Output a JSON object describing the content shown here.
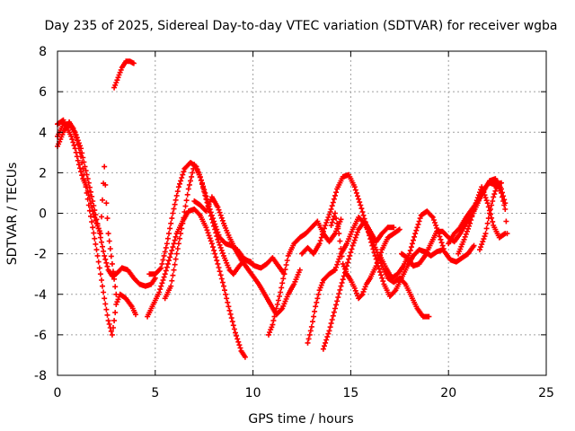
{
  "chart_data": {
    "type": "scatter",
    "title": "Day 235 of 2025, Sidereal Day-to-day VTEC variation (SDTVAR) for receiver wgba",
    "xlabel": "GPS time / hours",
    "ylabel": "SDTVAR / TECUs",
    "xlim": [
      0,
      25
    ],
    "ylim": [
      -8,
      8
    ],
    "x_ticks": [
      0,
      5,
      10,
      15,
      20,
      25
    ],
    "y_ticks": [
      -8,
      -6,
      -4,
      -2,
      0,
      2,
      4,
      6,
      8
    ],
    "grid": true,
    "legend": "none",
    "marker": "+",
    "series_color": "#ff0000",
    "series": [
      {
        "name": "trace-1",
        "points": [
          [
            0,
            3.3
          ],
          [
            0.3,
            4.0
          ],
          [
            0.6,
            4.5
          ],
          [
            0.8,
            4.2
          ],
          [
            1.0,
            3.6
          ],
          [
            1.2,
            2.8
          ],
          [
            1.4,
            1.6
          ],
          [
            1.6,
            0.4
          ],
          [
            1.8,
            -0.7
          ],
          [
            2.0,
            -1.8
          ],
          [
            2.2,
            -3.0
          ],
          [
            2.4,
            -4.2
          ],
          [
            2.6,
            -5.3
          ],
          [
            2.8,
            -6.0
          ],
          [
            2.9,
            -5.3
          ],
          [
            3.0,
            -4.5
          ],
          [
            3.2,
            -4.0
          ],
          [
            3.5,
            -4.2
          ],
          [
            3.8,
            -4.6
          ],
          [
            4.0,
            -5.0
          ]
        ]
      },
      {
        "name": "trace-2",
        "points": [
          [
            0,
            3.8
          ],
          [
            0.3,
            4.4
          ],
          [
            0.6,
            4.4
          ],
          [
            0.9,
            4.0
          ],
          [
            1.2,
            3.2
          ],
          [
            1.4,
            2.3
          ],
          [
            1.6,
            1.5
          ],
          [
            1.8,
            0.6
          ],
          [
            2.0,
            -0.3
          ],
          [
            2.2,
            -1.2
          ],
          [
            2.4,
            -2.1
          ],
          [
            2.6,
            -2.8
          ],
          [
            2.8,
            -3.1
          ],
          [
            3.0,
            -3.0
          ],
          [
            3.3,
            -2.7
          ],
          [
            3.6,
            -2.8
          ],
          [
            3.9,
            -3.2
          ],
          [
            4.2,
            -3.5
          ],
          [
            4.5,
            -3.6
          ],
          [
            4.8,
            -3.5
          ],
          [
            5.0,
            -3.2
          ]
        ]
      },
      {
        "name": "trace-3",
        "points": [
          [
            0,
            4.4
          ],
          [
            0.3,
            4.6
          ],
          [
            0.5,
            4.2
          ],
          [
            0.7,
            3.8
          ],
          [
            0.9,
            3.2
          ],
          [
            1.1,
            2.4
          ],
          [
            1.3,
            1.7
          ],
          [
            1.5,
            1.3
          ],
          [
            1.6,
            0.9
          ],
          [
            1.8,
            0.1
          ],
          [
            2.0,
            -0.5
          ],
          [
            2.2,
            -1.0
          ],
          [
            2.4,
            2.3
          ],
          [
            2.5,
            0.5
          ],
          [
            2.6,
            -1.0
          ],
          [
            2.8,
            -2.5
          ],
          [
            3.0,
            -4.0
          ]
        ]
      },
      {
        "name": "trace-4",
        "points": [
          [
            2.9,
            6.2
          ],
          [
            3.1,
            6.7
          ],
          [
            3.3,
            7.2
          ],
          [
            3.5,
            7.5
          ],
          [
            3.7,
            7.5
          ],
          [
            3.9,
            7.4
          ]
        ]
      },
      {
        "name": "trace-5",
        "points": [
          [
            4.6,
            -5.1
          ],
          [
            4.9,
            -4.5
          ],
          [
            5.2,
            -3.9
          ],
          [
            5.5,
            -3.0
          ],
          [
            5.8,
            -2.0
          ],
          [
            6.1,
            -1.0
          ],
          [
            6.4,
            -0.4
          ],
          [
            6.7,
            0.1
          ],
          [
            7.0,
            0.2
          ],
          [
            7.3,
            -0.1
          ],
          [
            7.6,
            -0.7
          ],
          [
            7.9,
            -1.5
          ],
          [
            8.2,
            -2.5
          ],
          [
            8.5,
            -3.6
          ],
          [
            8.8,
            -4.8
          ],
          [
            9.1,
            -5.9
          ],
          [
            9.4,
            -6.8
          ],
          [
            9.6,
            -7.1
          ]
        ]
      },
      {
        "name": "trace-6",
        "points": [
          [
            4.7,
            -3.0
          ],
          [
            5.0,
            -3.0
          ],
          [
            5.3,
            -2.7
          ],
          [
            5.6,
            -1.5
          ],
          [
            5.9,
            0.0
          ],
          [
            6.2,
            1.3
          ],
          [
            6.5,
            2.2
          ],
          [
            6.8,
            2.5
          ],
          [
            7.1,
            2.3
          ],
          [
            7.4,
            1.5
          ],
          [
            7.7,
            0.5
          ],
          [
            8.0,
            -0.4
          ],
          [
            8.3,
            -1.2
          ],
          [
            8.6,
            -1.5
          ],
          [
            8.9,
            -1.6
          ],
          [
            9.2,
            -1.8
          ],
          [
            9.5,
            -2.2
          ],
          [
            9.8,
            -2.4
          ],
          [
            10.1,
            -2.6
          ],
          [
            10.4,
            -2.7
          ],
          [
            10.7,
            -2.5
          ],
          [
            11.0,
            -2.2
          ],
          [
            11.3,
            -2.6
          ],
          [
            11.6,
            -3.0
          ]
        ]
      },
      {
        "name": "trace-7",
        "points": [
          [
            5.5,
            -4.2
          ],
          [
            5.8,
            -3.6
          ],
          [
            6.1,
            -2.0
          ],
          [
            6.4,
            -0.5
          ],
          [
            6.7,
            1.2
          ],
          [
            7.0,
            2.4
          ],
          [
            7.3,
            1.8
          ],
          [
            7.6,
            0.7
          ],
          [
            7.9,
            -0.3
          ],
          [
            8.2,
            -1.3
          ],
          [
            8.5,
            -2.1
          ],
          [
            8.8,
            -2.8
          ],
          [
            9.0,
            -3.0
          ],
          [
            9.3,
            -2.6
          ],
          [
            9.6,
            -2.3
          ],
          [
            9.9,
            -2.4
          ]
        ]
      },
      {
        "name": "trace-8",
        "points": [
          [
            7.0,
            0.6
          ],
          [
            7.3,
            0.4
          ],
          [
            7.6,
            0.1
          ],
          [
            7.9,
            0.8
          ],
          [
            8.2,
            0.3
          ],
          [
            8.5,
            -0.5
          ],
          [
            8.8,
            -1.2
          ],
          [
            9.1,
            -1.8
          ],
          [
            9.4,
            -2.3
          ],
          [
            9.7,
            -2.7
          ],
          [
            10.0,
            -3.1
          ],
          [
            10.3,
            -3.5
          ],
          [
            10.6,
            -4.0
          ],
          [
            10.9,
            -4.5
          ],
          [
            11.2,
            -5.0
          ],
          [
            11.5,
            -4.7
          ],
          [
            11.8,
            -4.0
          ],
          [
            12.1,
            -3.5
          ],
          [
            12.4,
            -2.8
          ]
        ]
      },
      {
        "name": "trace-9",
        "points": [
          [
            10.8,
            -6.0
          ],
          [
            11.0,
            -5.5
          ],
          [
            11.2,
            -4.7
          ],
          [
            11.4,
            -3.9
          ],
          [
            11.6,
            -3.0
          ],
          [
            11.8,
            -2.1
          ],
          [
            12.1,
            -1.5
          ],
          [
            12.4,
            -1.2
          ],
          [
            12.7,
            -1.0
          ],
          [
            13.0,
            -0.7
          ],
          [
            13.3,
            -0.4
          ],
          [
            13.6,
            -1.0
          ],
          [
            13.9,
            -1.4
          ],
          [
            14.2,
            -1.0
          ],
          [
            14.5,
            -0.3
          ]
        ]
      },
      {
        "name": "trace-10",
        "points": [
          [
            12.5,
            -2.0
          ],
          [
            12.8,
            -1.7
          ],
          [
            13.1,
            -2.0
          ],
          [
            13.4,
            -1.5
          ],
          [
            13.7,
            -0.6
          ],
          [
            14.0,
            0.2
          ],
          [
            14.3,
            1.2
          ],
          [
            14.6,
            1.8
          ],
          [
            14.9,
            1.9
          ],
          [
            15.2,
            1.3
          ],
          [
            15.5,
            0.4
          ],
          [
            15.8,
            -0.6
          ],
          [
            16.1,
            -1.6
          ],
          [
            16.4,
            -2.6
          ],
          [
            16.7,
            -3.5
          ],
          [
            17.0,
            -4.1
          ],
          [
            17.3,
            -3.8
          ],
          [
            17.6,
            -3.2
          ],
          [
            17.9,
            -2.6
          ],
          [
            18.2,
            -2.1
          ],
          [
            18.5,
            -1.8
          ],
          [
            18.8,
            -1.9
          ],
          [
            19.1,
            -2.1
          ],
          [
            19.4,
            -1.9
          ],
          [
            19.7,
            -1.8
          ]
        ]
      },
      {
        "name": "trace-11",
        "points": [
          [
            12.8,
            -6.4
          ],
          [
            13.0,
            -5.6
          ],
          [
            13.2,
            -4.6
          ],
          [
            13.4,
            -3.8
          ],
          [
            13.6,
            -3.3
          ],
          [
            13.9,
            -3.0
          ],
          [
            14.2,
            -2.8
          ],
          [
            14.5,
            -2.0
          ],
          [
            14.8,
            -1.5
          ],
          [
            15.1,
            -0.8
          ],
          [
            15.4,
            -0.2
          ],
          [
            15.7,
            -0.5
          ],
          [
            16.0,
            -1.1
          ],
          [
            16.3,
            -1.8
          ],
          [
            16.6,
            -2.6
          ],
          [
            16.9,
            -3.2
          ],
          [
            17.2,
            -3.4
          ],
          [
            17.5,
            -3.2
          ],
          [
            17.8,
            -3.5
          ],
          [
            18.1,
            -4.1
          ],
          [
            18.4,
            -4.7
          ],
          [
            18.7,
            -5.1
          ],
          [
            19.0,
            -5.1
          ]
        ]
      },
      {
        "name": "trace-12",
        "points": [
          [
            13.6,
            -6.7
          ],
          [
            13.9,
            -5.8
          ],
          [
            14.2,
            -4.7
          ],
          [
            14.5,
            -3.6
          ],
          [
            14.8,
            -2.6
          ],
          [
            15.1,
            -1.6
          ],
          [
            15.4,
            -0.8
          ],
          [
            15.7,
            -0.4
          ],
          [
            16.0,
            -0.9
          ],
          [
            16.3,
            -1.4
          ],
          [
            16.6,
            -1.0
          ],
          [
            16.9,
            -0.7
          ],
          [
            17.2,
            -0.7
          ]
        ]
      },
      {
        "name": "trace-13",
        "points": [
          [
            14.0,
            -0.6
          ],
          [
            14.2,
            0.0
          ],
          [
            14.4,
            -1.0
          ],
          [
            14.6,
            -2.5
          ],
          [
            14.8,
            -3.0
          ],
          [
            15.0,
            -3.3
          ],
          [
            15.2,
            -3.7
          ],
          [
            15.4,
            -4.2
          ],
          [
            15.6,
            -4.0
          ],
          [
            15.8,
            -3.5
          ],
          [
            16.0,
            -3.2
          ],
          [
            16.3,
            -2.6
          ],
          [
            16.6,
            -1.8
          ],
          [
            16.9,
            -1.2
          ],
          [
            17.2,
            -1.0
          ],
          [
            17.5,
            -0.8
          ]
        ]
      },
      {
        "name": "trace-14",
        "points": [
          [
            16.5,
            -2.1
          ],
          [
            16.8,
            -2.7
          ],
          [
            17.1,
            -3.2
          ],
          [
            17.4,
            -3.0
          ],
          [
            17.7,
            -2.6
          ],
          [
            18.0,
            -2.0
          ],
          [
            18.3,
            -1.0
          ],
          [
            18.6,
            -0.1
          ],
          [
            18.9,
            0.1
          ],
          [
            19.2,
            -0.2
          ],
          [
            19.5,
            -1.0
          ],
          [
            19.8,
            -1.9
          ],
          [
            20.1,
            -2.3
          ],
          [
            20.4,
            -2.4
          ],
          [
            20.7,
            -2.2
          ],
          [
            21.0,
            -2.0
          ],
          [
            21.3,
            -1.6
          ]
        ]
      },
      {
        "name": "trace-15",
        "points": [
          [
            17.6,
            -2.0
          ],
          [
            17.9,
            -2.2
          ],
          [
            18.2,
            -2.6
          ],
          [
            18.5,
            -2.5
          ],
          [
            18.8,
            -2.1
          ],
          [
            19.1,
            -1.5
          ],
          [
            19.4,
            -0.9
          ],
          [
            19.7,
            -0.9
          ],
          [
            20.0,
            -1.2
          ],
          [
            20.3,
            -1.4
          ],
          [
            20.6,
            -1.0
          ],
          [
            20.9,
            -0.5
          ],
          [
            21.2,
            -0.1
          ],
          [
            21.5,
            0.5
          ],
          [
            21.8,
            1.2
          ],
          [
            22.1,
            1.5
          ],
          [
            22.4,
            1.4
          ],
          [
            22.7,
            1.5
          ]
        ]
      },
      {
        "name": "trace-16",
        "points": [
          [
            20.0,
            -1.5
          ],
          [
            20.3,
            -1.0
          ],
          [
            20.6,
            -0.7
          ],
          [
            20.9,
            -0.2
          ],
          [
            21.2,
            0.2
          ],
          [
            21.5,
            0.6
          ],
          [
            21.8,
            1.1
          ],
          [
            22.1,
            1.6
          ],
          [
            22.4,
            1.7
          ],
          [
            22.7,
            1.2
          ],
          [
            22.9,
            0.5
          ]
        ]
      },
      {
        "name": "trace-17",
        "points": [
          [
            20.5,
            -2.0
          ],
          [
            20.8,
            -1.3
          ],
          [
            21.1,
            -0.5
          ],
          [
            21.4,
            0.5
          ],
          [
            21.7,
            1.3
          ],
          [
            22.0,
            0.5
          ],
          [
            22.3,
            -0.6
          ],
          [
            22.6,
            -1.2
          ],
          [
            22.9,
            -1.0
          ]
        ]
      },
      {
        "name": "trace-18",
        "points": [
          [
            21.6,
            -1.8
          ],
          [
            21.9,
            -1.0
          ],
          [
            22.1,
            0.0
          ],
          [
            22.3,
            0.8
          ],
          [
            22.5,
            1.4
          ],
          [
            22.7,
            1.0
          ],
          [
            22.9,
            0.2
          ],
          [
            23.0,
            -1.0
          ]
        ]
      }
    ]
  }
}
